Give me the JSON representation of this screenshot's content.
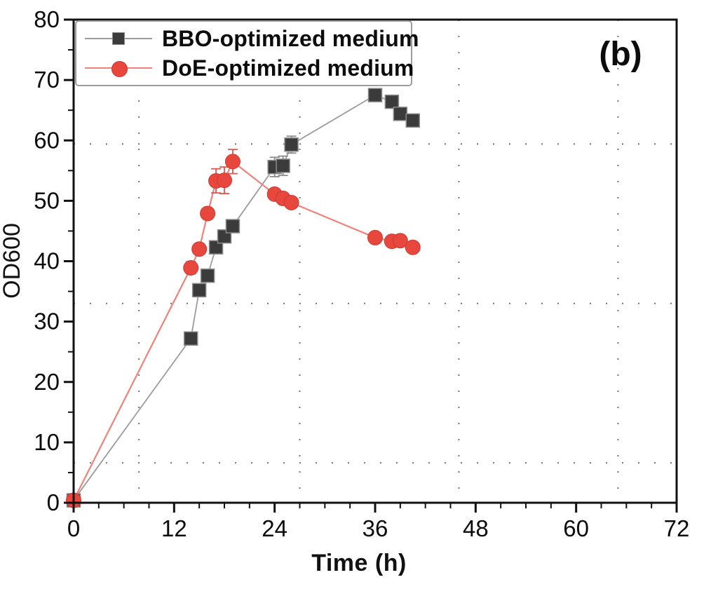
{
  "figure": {
    "panel_label": "(b)",
    "background_color": "#ffffff",
    "axis_color": "#111111",
    "grid_dot_color": "#5a5a5a"
  },
  "chart_data": {
    "type": "line",
    "title": "",
    "xlabel": "Time (h)",
    "ylabel": "OD600",
    "xlim": [
      0,
      72
    ],
    "ylim": [
      0,
      80
    ],
    "xticks": [
      0,
      12,
      24,
      36,
      48,
      60,
      72
    ],
    "yticks": [
      0,
      10,
      20,
      30,
      40,
      50,
      60,
      70,
      80
    ],
    "x_minor_step": 3,
    "y_minor_step": 5,
    "legend_position": "top-left",
    "grid": {
      "style": "dotted",
      "x_positions": [
        7.8,
        27.0,
        46.0,
        65.0
      ],
      "y_positions": [
        59.4,
        33.0,
        6.6
      ]
    },
    "series": [
      {
        "name": "BBO-optimized medium",
        "marker": "square",
        "marker_color": "#3b3b3b",
        "marker_edge_color": "#8a8a8a",
        "line_color": "#9b9b9b",
        "x": [
          0,
          14,
          15,
          16,
          17,
          18,
          19,
          24,
          25,
          26,
          36,
          38,
          39,
          40.5
        ],
        "y": [
          0.4,
          27.2,
          35.2,
          37.6,
          42.3,
          44.1,
          45.8,
          55.6,
          55.8,
          59.3,
          67.5,
          66.4,
          64.4,
          63.3
        ],
        "yerr": [
          0,
          0,
          0,
          0,
          0,
          0,
          0,
          1.6,
          1.6,
          1.4,
          0,
          0.6,
          0.6,
          0
        ]
      },
      {
        "name": "DoE-optimized medium",
        "marker": "circle",
        "marker_color": "#e8473e",
        "marker_edge_color": "#c93a32",
        "line_color": "#ef827b",
        "x": [
          0,
          14,
          15,
          16,
          17,
          18,
          19,
          24,
          25,
          26,
          36,
          38,
          39,
          40.5
        ],
        "y": [
          0.4,
          38.9,
          42.0,
          47.9,
          53.3,
          53.4,
          56.5,
          51.1,
          50.4,
          49.7,
          43.9,
          43.3,
          43.4,
          42.3
        ],
        "yerr": [
          0,
          1.0,
          0,
          0.8,
          2.0,
          2.2,
          2.0,
          0,
          0.5,
          0,
          0,
          0.6,
          0,
          0
        ]
      }
    ]
  }
}
